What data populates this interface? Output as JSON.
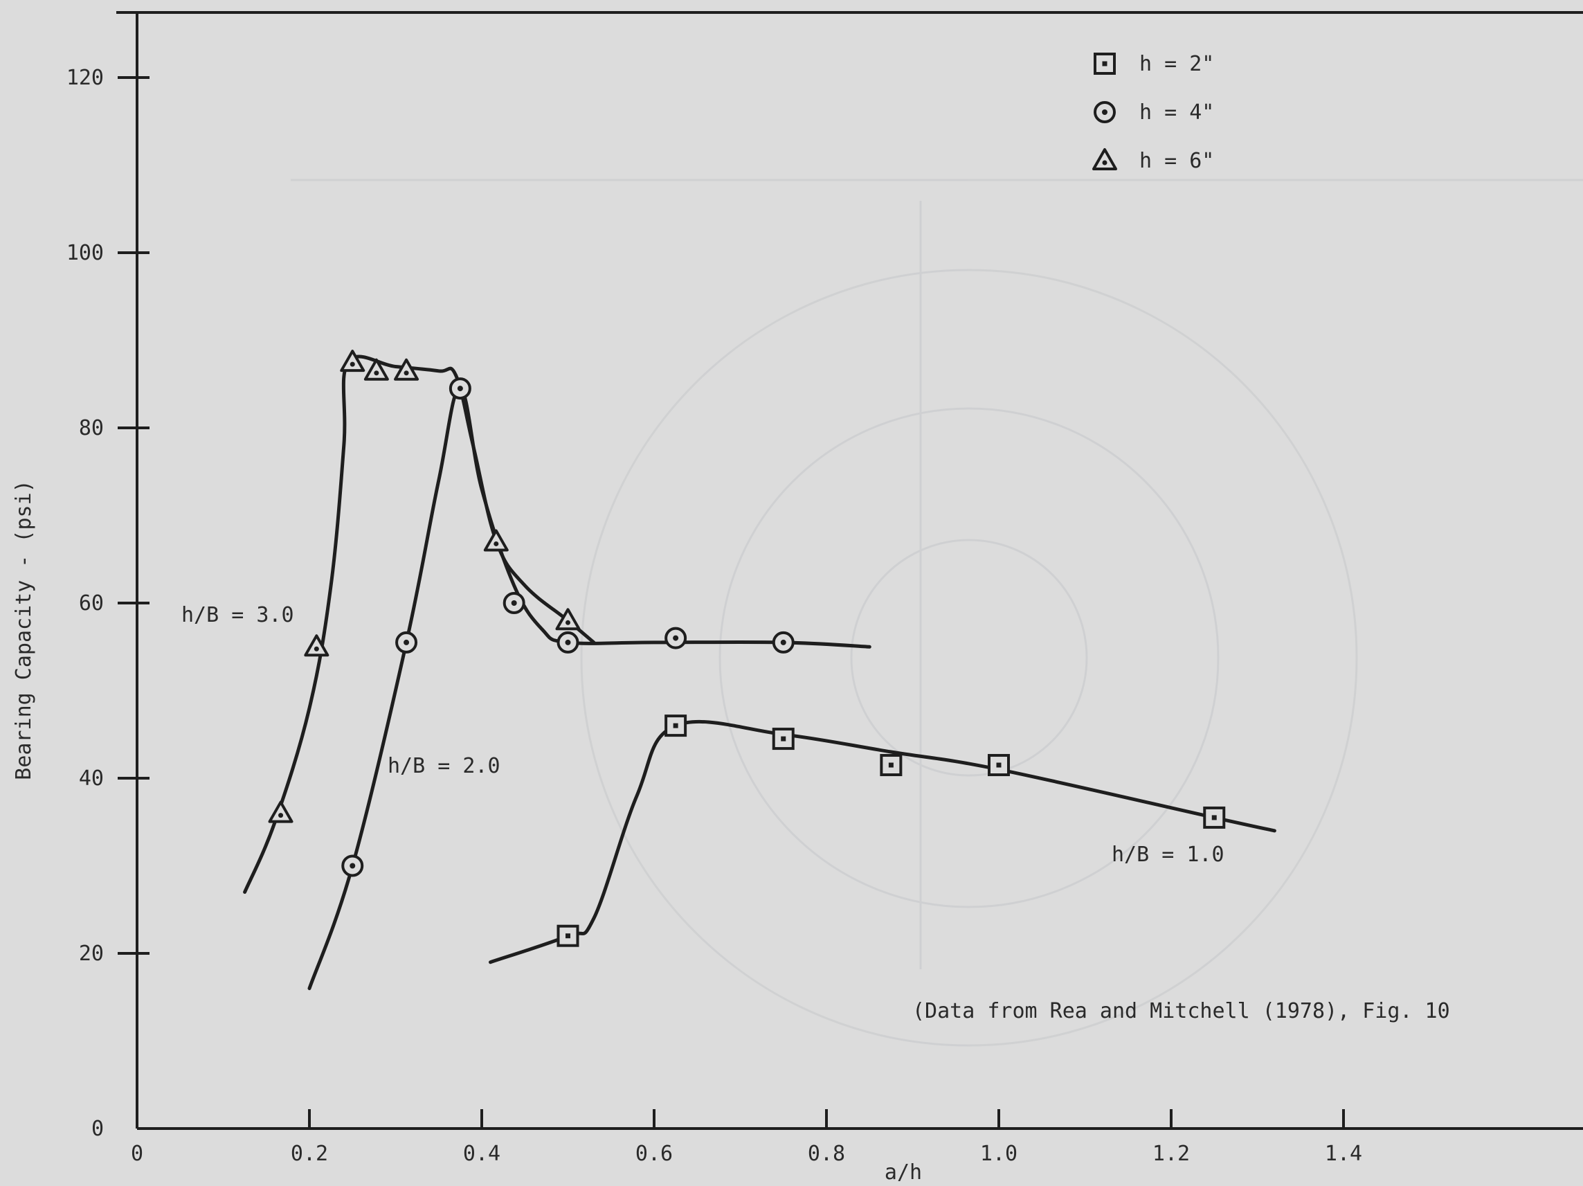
{
  "chart_data": {
    "type": "scatter",
    "title": "",
    "xlabel": "a/h",
    "ylabel": "Bearing Capacity - (psi)",
    "xlim": [
      0,
      1.6
    ],
    "ylim": [
      0,
      120
    ],
    "x_ticks": [
      "0",
      "0.2",
      "0.4",
      "0.6",
      "0.8",
      "1.0",
      "1.2",
      "1.4"
    ],
    "y_ticks": [
      "0",
      "20",
      "40",
      "60",
      "80",
      "100",
      "120"
    ],
    "grid": false,
    "legend_position": "top-right",
    "legend": [
      {
        "marker": "square",
        "label": "h = 2\""
      },
      {
        "marker": "circle",
        "label": "h = 4\""
      },
      {
        "marker": "triangle",
        "label": "h = 6\""
      }
    ],
    "series": [
      {
        "name": "h = 2\"",
        "marker": "square",
        "points": [
          [
            0.5,
            22
          ],
          [
            0.625,
            46
          ],
          [
            0.75,
            44.5
          ],
          [
            0.875,
            41.5
          ],
          [
            1.0,
            41.5
          ],
          [
            1.25,
            35.5
          ]
        ]
      },
      {
        "name": "h = 4\"",
        "marker": "circle",
        "points": [
          [
            0.25,
            30
          ],
          [
            0.3125,
            55.5
          ],
          [
            0.375,
            84.5
          ],
          [
            0.4375,
            60
          ],
          [
            0.5,
            55.5
          ],
          [
            0.625,
            56
          ],
          [
            0.75,
            55.5
          ]
        ]
      },
      {
        "name": "h = 6\"",
        "marker": "triangle",
        "points": [
          [
            0.1667,
            36
          ],
          [
            0.2083,
            55
          ],
          [
            0.25,
            87.5
          ],
          [
            0.2778,
            86.5
          ],
          [
            0.3125,
            86.5
          ],
          [
            0.4167,
            67
          ],
          [
            0.5,
            58
          ]
        ]
      }
    ],
    "curves": [
      {
        "label": "h/B = 3.0",
        "points": [
          [
            0.125,
            27
          ],
          [
            0.16,
            35
          ],
          [
            0.2,
            48
          ],
          [
            0.225,
            62
          ],
          [
            0.24,
            78
          ],
          [
            0.245,
            87.5
          ],
          [
            0.3,
            87
          ],
          [
            0.35,
            86.5
          ],
          [
            0.37,
            86
          ],
          [
            0.39,
            78
          ],
          [
            0.417,
            67
          ],
          [
            0.45,
            62
          ],
          [
            0.5,
            58
          ],
          [
            0.53,
            55.5
          ]
        ]
      },
      {
        "label": "h/B = 2.0",
        "points": [
          [
            0.2,
            16
          ],
          [
            0.25,
            30
          ],
          [
            0.3125,
            55.5
          ],
          [
            0.35,
            74
          ],
          [
            0.375,
            84.5
          ],
          [
            0.4,
            73
          ],
          [
            0.4375,
            62
          ],
          [
            0.47,
            57
          ],
          [
            0.5,
            55.5
          ],
          [
            0.6,
            55.5
          ],
          [
            0.75,
            55.5
          ],
          [
            0.85,
            55
          ]
        ]
      },
      {
        "label": "h/B = 1.0",
        "points": [
          [
            0.41,
            19
          ],
          [
            0.5,
            22
          ],
          [
            0.53,
            24
          ],
          [
            0.58,
            38
          ],
          [
            0.625,
            46
          ],
          [
            0.75,
            45
          ],
          [
            0.875,
            43
          ],
          [
            1.0,
            41
          ],
          [
            1.25,
            35.5
          ],
          [
            1.32,
            34
          ]
        ]
      }
    ],
    "annotations": {
      "source_note": "(Data from Rea and Mitchell (1978), Fig. 10"
    }
  }
}
